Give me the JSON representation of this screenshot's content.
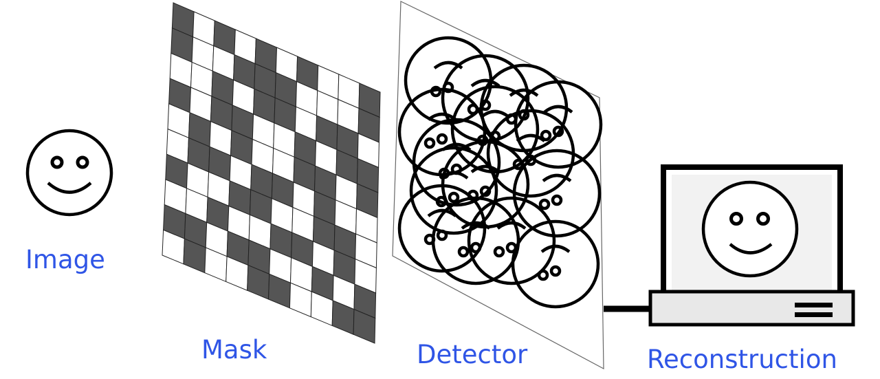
{
  "labels": {
    "image": "Image",
    "mask": "Mask",
    "detector": "Detector",
    "reconstruction": "Reconstruction"
  },
  "colors": {
    "label": "#2f55e6",
    "mask_dark": "#555555",
    "stroke": "#000000",
    "console": "#e8e8e8"
  },
  "icons": {
    "source": "smiley-face-icon",
    "computer": "computer-monitor-icon"
  },
  "mask_pattern": [
    "1010101001",
    "1001110001",
    "0010110110",
    "1011001011",
    "0101001101",
    "0110110100",
    "1001100110",
    "0010011010",
    "1101100101",
    "0100110011"
  ]
}
